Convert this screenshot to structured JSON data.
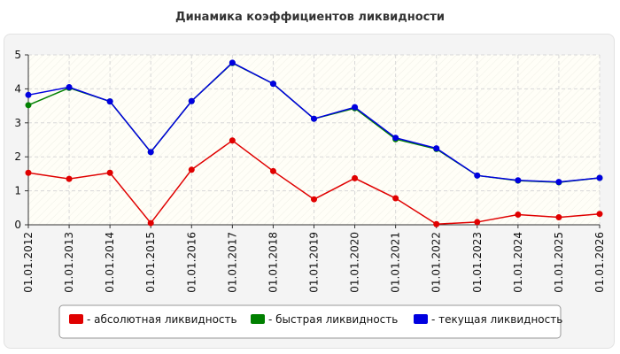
{
  "chart_data": {
    "type": "line",
    "title": "Динамика коэффициентов ликвидности",
    "xlabel": "",
    "ylabel": "",
    "ylim": [
      0,
      5
    ],
    "y_ticks": [
      "0",
      "1",
      "2",
      "3",
      "4",
      "5"
    ],
    "grid": true,
    "legend_position": "bottom",
    "categories": [
      "01.01.2012",
      "01.01.2013",
      "01.01.2014",
      "01.01.2015",
      "01.01.2016",
      "01.01.2017",
      "01.01.2018",
      "01.01.2019",
      "01.01.2020",
      "01.01.2021",
      "01.01.2022",
      "01.01.2023",
      "01.01.2024",
      "01.01.2025",
      "01.01.2026"
    ],
    "series": [
      {
        "name": "- абсолютная ликвидность",
        "color": "#e00000",
        "values": [
          1.53,
          1.35,
          1.53,
          0.05,
          1.62,
          2.48,
          1.58,
          0.75,
          1.37,
          0.78,
          0.02,
          0.08,
          0.3,
          0.22,
          0.32
        ]
      },
      {
        "name": "- быстрая ликвидность",
        "color": "#008000",
        "values": [
          3.52,
          4.03,
          3.63,
          2.14,
          3.64,
          4.76,
          4.15,
          3.12,
          3.43,
          2.52,
          2.23,
          1.45,
          1.3,
          1.25,
          1.38
        ]
      },
      {
        "name": "- текущая ликвидность",
        "color": "#0000e0",
        "values": [
          3.82,
          4.05,
          3.63,
          2.14,
          3.64,
          4.77,
          4.15,
          3.12,
          3.46,
          2.56,
          2.25,
          1.45,
          1.31,
          1.26,
          1.38
        ]
      }
    ]
  }
}
